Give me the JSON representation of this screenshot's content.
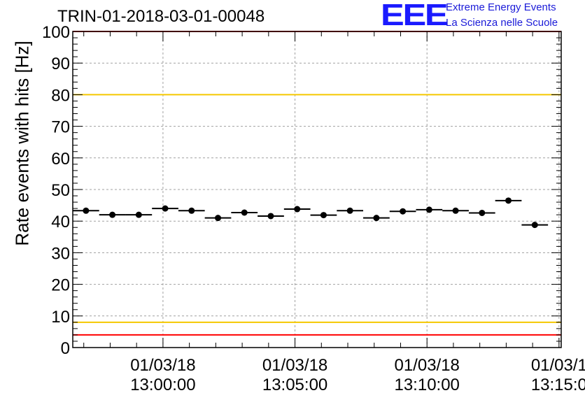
{
  "header": {
    "title": "TRIN-01-2018-03-01-00048",
    "logo_text": "EEE",
    "logo_line1": "Extreme Energy Events",
    "logo_line2": "La Scienza nelle Scuole"
  },
  "colors": {
    "logo": "#1a1aff",
    "red_line": "#ff0000",
    "yellow_line": "#f5c800",
    "points": "#000000",
    "grid": "#a0a0a0"
  },
  "chart_data": {
    "type": "scatter",
    "title": "TRIN-01-2018-03-01-00048",
    "xlabel": "",
    "ylabel": "Rate events with hits [Hz]",
    "ylim": [
      0,
      100
    ],
    "xlim": [
      "12:56:35",
      "13:15:05"
    ],
    "yticks": [
      0,
      10,
      20,
      30,
      40,
      50,
      60,
      70,
      80,
      90,
      100
    ],
    "xticks": [
      {
        "time": "13:00:00",
        "date_label": "01/03/18",
        "time_label": "13:00:00"
      },
      {
        "time": "13:05:00",
        "date_label": "01/03/18",
        "time_label": "13:05:00"
      },
      {
        "time": "13:10:00",
        "date_label": "01/03/18",
        "time_label": "13:10:00"
      },
      {
        "time": "13:15:00",
        "date_label": "01/03/1",
        "time_label": "13:15:0"
      }
    ],
    "grid": true,
    "reference_lines": [
      {
        "y": 100,
        "color": "red"
      },
      {
        "y": 80,
        "color": "yellow"
      },
      {
        "y": 8,
        "color": "yellow"
      },
      {
        "y": 4,
        "color": "red"
      }
    ],
    "points": [
      {
        "x_start": "12:56:35",
        "x_end": "12:57:35",
        "y": 43.3
      },
      {
        "x_start": "12:57:35",
        "x_end": "12:58:35",
        "y": 42.0
      },
      {
        "x_start": "12:58:35",
        "x_end": "12:59:35",
        "y": 42.0
      },
      {
        "x_start": "12:59:35",
        "x_end": "13:00:35",
        "y": 44.0
      },
      {
        "x_start": "13:00:35",
        "x_end": "13:01:35",
        "y": 43.3
      },
      {
        "x_start": "13:01:35",
        "x_end": "13:02:35",
        "y": 41.0
      },
      {
        "x_start": "13:02:35",
        "x_end": "13:03:35",
        "y": 42.7
      },
      {
        "x_start": "13:03:35",
        "x_end": "13:04:35",
        "y": 41.6
      },
      {
        "x_start": "13:04:35",
        "x_end": "13:05:35",
        "y": 43.8
      },
      {
        "x_start": "13:05:35",
        "x_end": "13:06:35",
        "y": 41.9
      },
      {
        "x_start": "13:06:35",
        "x_end": "13:07:35",
        "y": 43.3
      },
      {
        "x_start": "13:07:35",
        "x_end": "13:08:35",
        "y": 41.0
      },
      {
        "x_start": "13:08:35",
        "x_end": "13:09:35",
        "y": 43.1
      },
      {
        "x_start": "13:09:35",
        "x_end": "13:10:35",
        "y": 43.6
      },
      {
        "x_start": "13:10:35",
        "x_end": "13:11:35",
        "y": 43.3
      },
      {
        "x_start": "13:11:35",
        "x_end": "13:12:35",
        "y": 42.6
      },
      {
        "x_start": "13:12:35",
        "x_end": "13:13:35",
        "y": 46.5
      },
      {
        "x_start": "13:13:35",
        "x_end": "13:14:35",
        "y": 38.8
      }
    ]
  }
}
